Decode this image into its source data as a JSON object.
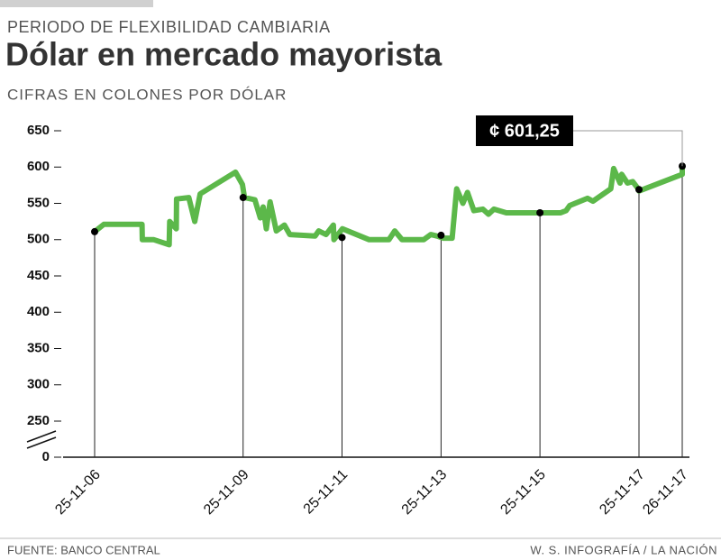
{
  "chart_data": {
    "type": "line",
    "supertitle": "PERIODO DE FLEXIBILIDAD CAMBIARIA",
    "title": "Dólar en mercado mayorista",
    "subtitle": "CIFRAS EN COLONES POR DÓLAR",
    "source": "FUENTE: BANCO CENTRAL",
    "credit": "W. S. INFOGRAFÍA / LA NACIÓN",
    "color": "#5cb84a",
    "x": [
      "2006-11-25",
      "2007-02-01",
      "2007-11-10",
      "2007-11-12",
      "2008-02-05",
      "2008-05-28",
      "2008-06-01",
      "2008-07-20",
      "2008-07-22",
      "2008-10-20",
      "2008-12-03",
      "2009-01-12",
      "2009-09-30",
      "2009-11-20",
      "2009-12-05",
      "2010-02-20",
      "2010-04-01",
      "2010-04-22",
      "2010-05-15",
      "2010-06-12",
      "2010-07-28",
      "2010-09-26",
      "2010-11-05",
      "2011-05-10",
      "2011-06-06",
      "2011-07-30",
      "2011-09-22",
      "2011-09-26",
      "2011-11-28",
      "2012-02-01",
      "2012-06-12",
      "2012-11-05",
      "2012-12-18",
      "2013-02-10",
      "2013-07-20",
      "2013-09-10",
      "2013-10-25",
      "2013-12-12",
      "2014-02-15",
      "2014-03-20",
      "2014-05-05",
      "2014-06-08",
      "2014-07-25",
      "2014-09-30",
      "2014-11-10",
      "2014-12-20",
      "2015-03-22",
      "2016-04-25",
      "2016-06-05",
      "2016-07-02",
      "2016-11-10",
      "2016-12-20",
      "2017-05-01",
      "2017-05-22",
      "2017-07-08",
      "2017-07-20",
      "2017-09-01",
      "2017-10-10",
      "2017-11-20",
      "2017-11-25",
      "2017-11-26",
      "2017-11-26"
    ],
    "values": [
      511,
      521,
      521,
      500,
      500,
      493,
      525,
      515,
      556,
      558,
      525,
      563,
      593,
      576,
      558,
      555,
      530,
      545,
      515,
      552,
      512,
      520,
      507,
      505,
      512,
      507,
      520,
      500,
      515,
      510,
      500,
      500,
      512,
      500,
      500,
      507,
      505,
      502,
      502,
      570,
      550,
      565,
      540,
      542,
      535,
      542,
      537,
      537,
      540,
      547,
      557,
      553,
      570,
      598,
      578,
      590,
      578,
      580,
      570,
      567,
      590,
      601.25
    ],
    "markers": {
      "x": [
        "2006-11-25",
        "2009-11-25",
        "2011-11-25",
        "2013-11-25",
        "2015-11-25",
        "2017-11-25",
        "2017-11-26"
      ],
      "values": [
        511,
        558,
        503,
        506,
        537,
        569,
        601.25
      ],
      "value_labels": [
        null,
        null,
        null,
        null,
        null,
        null,
        "¢ 601,25"
      ]
    },
    "xlim": [
      "2006-11-25",
      "2017-11-26"
    ],
    "xticks": [
      {
        "value": "2006-11-25",
        "label": "25-11-06"
      },
      {
        "value": "2009-11-25",
        "label": "25-11-09"
      },
      {
        "value": "2011-11-25",
        "label": "25-11-11"
      },
      {
        "value": "2013-11-25",
        "label": "25-11-13"
      },
      {
        "value": "2015-11-25",
        "label": "25-11-15"
      },
      {
        "value": "2017-11-25",
        "label": "25-11-17"
      },
      {
        "value": "2017-11-26",
        "label": "26-11-17"
      }
    ],
    "ylim": [
      0,
      650
    ],
    "yticks": [
      0,
      250,
      300,
      350,
      400,
      450,
      500,
      550,
      600,
      650
    ],
    "axis_break": true
  }
}
